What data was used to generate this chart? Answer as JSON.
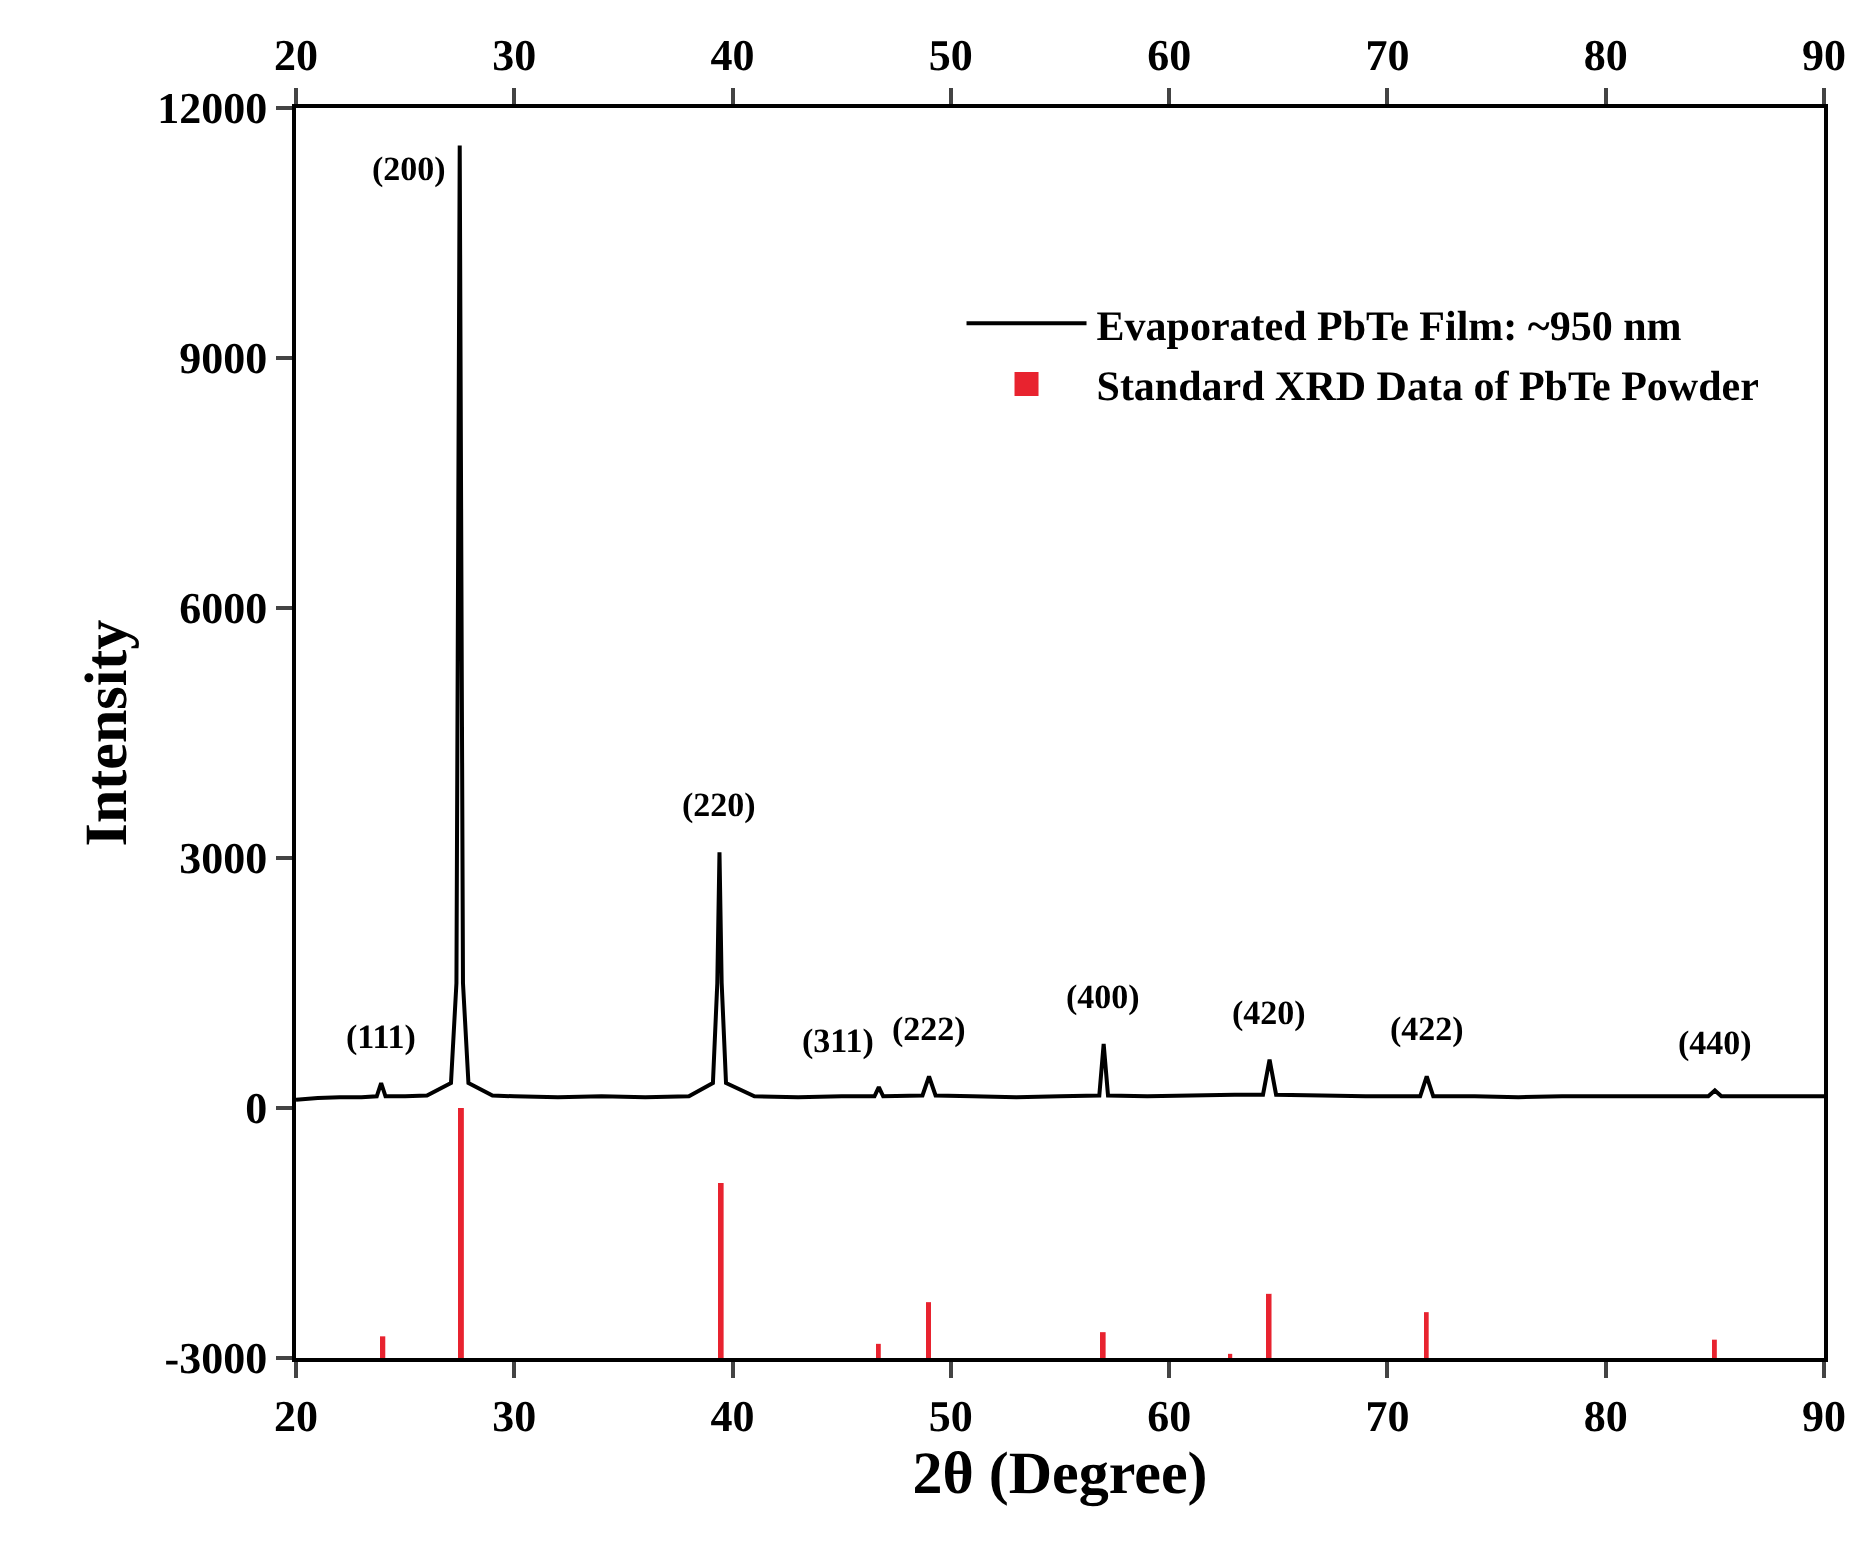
{
  "chart_data": {
    "type": "line",
    "xlabel": "2θ (Degree)",
    "ylabel": "Intensity",
    "xlim": [
      20,
      90
    ],
    "xticks": [
      20,
      30,
      40,
      50,
      60,
      70,
      80,
      90
    ],
    "x2lim": [
      20,
      90
    ],
    "x2ticks": [
      20,
      30,
      40,
      50,
      60,
      70,
      80,
      90
    ],
    "ylim": [
      -3000,
      12000
    ],
    "yticks": [
      -3000,
      0,
      3000,
      6000,
      9000,
      12000
    ],
    "legend": "top right",
    "marker": "none",
    "line_style": "solid",
    "series": [
      {
        "name": "Evaporated PbTe Film: ~950 nm",
        "color": "#000000",
        "x": [
          20,
          21,
          22,
          23,
          23.7,
          23.9,
          24.1,
          25,
          26,
          27.1,
          27.35,
          27.5,
          27.65,
          27.9,
          29,
          30,
          32,
          34,
          36,
          38,
          39.1,
          39.3,
          39.4,
          39.5,
          39.7,
          41,
          43,
          45,
          46.5,
          46.7,
          46.9,
          48.7,
          49.0,
          49.3,
          51,
          53,
          55,
          56.8,
          57.0,
          57.2,
          59,
          61,
          63,
          64.3,
          64.6,
          64.9,
          67,
          69,
          71.5,
          71.8,
          72.1,
          74,
          76,
          78,
          80,
          82,
          84.7,
          85.0,
          85.3,
          87,
          89,
          90
        ],
        "values": [
          100,
          120,
          130,
          130,
          140,
          300,
          140,
          140,
          150,
          300,
          1500,
          11550,
          1500,
          300,
          150,
          140,
          130,
          140,
          130,
          140,
          300,
          1500,
          3070,
          1500,
          300,
          140,
          130,
          140,
          140,
          250,
          140,
          150,
          380,
          150,
          140,
          130,
          140,
          150,
          770,
          150,
          140,
          150,
          160,
          160,
          580,
          160,
          150,
          140,
          140,
          380,
          140,
          140,
          130,
          140,
          140,
          140,
          140,
          210,
          140,
          140,
          140,
          140
        ]
      },
      {
        "name": "Standard XRD Data of PbTe Powder",
        "type": "bar",
        "color": "#e8232f",
        "x": [
          24.0,
          27.6,
          39.5,
          46.7,
          49.0,
          57.0,
          62.8,
          64.6,
          71.8,
          85.0
        ],
        "base": [
          -3000,
          -3000,
          -3000,
          -3000,
          -3000,
          -3000,
          -3000,
          -3000,
          -3000,
          -3000
        ],
        "values": [
          260,
          3000,
          2100,
          170,
          670,
          310,
          50,
          770,
          550,
          220
        ]
      }
    ],
    "annotations": [
      {
        "text": "(111)",
        "x": 23.9,
        "y": 300
      },
      {
        "text": "(200)",
        "x": 27.5,
        "y": 11550
      },
      {
        "text": "(220)",
        "x": 39.4,
        "y": 3070
      },
      {
        "text": "(311)",
        "x": 46.7,
        "y": 250
      },
      {
        "text": "(222)",
        "x": 49.0,
        "y": 380
      },
      {
        "text": "(400)",
        "x": 57.0,
        "y": 770
      },
      {
        "text": "(420)",
        "x": 64.6,
        "y": 580
      },
      {
        "text": "(422)",
        "x": 71.8,
        "y": 380
      },
      {
        "text": "(440)",
        "x": 85.0,
        "y": 210
      }
    ]
  }
}
